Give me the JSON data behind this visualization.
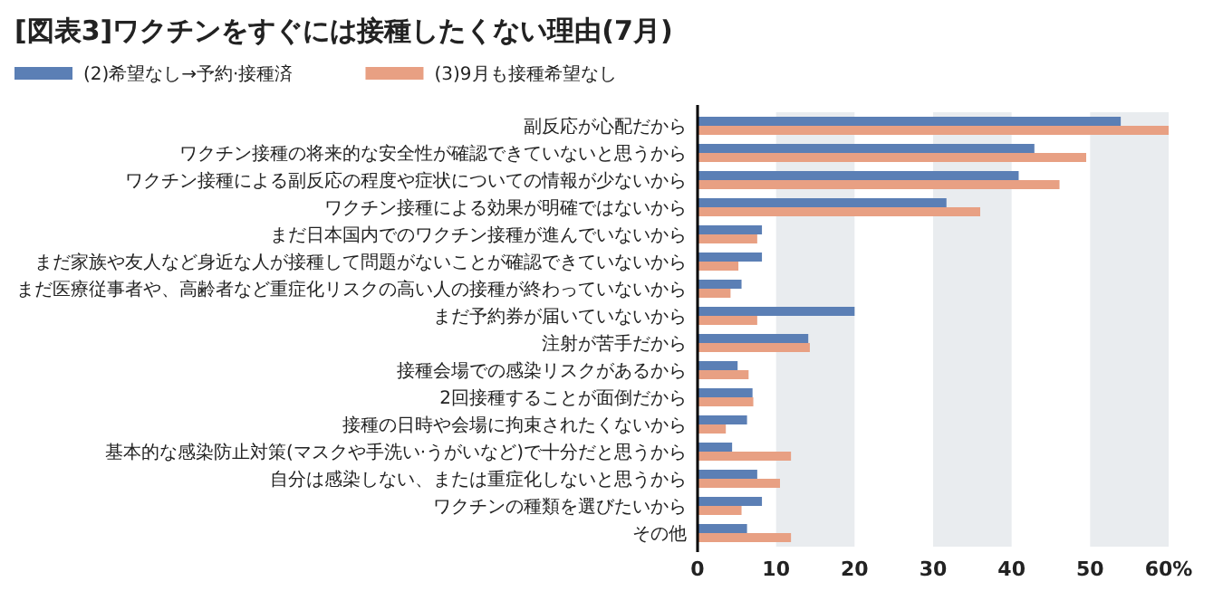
{
  "chart_data": {
    "type": "bar",
    "orientation": "horizontal",
    "title": "[図表3]ワクチンをすぐには接種したくない理由(7月)",
    "categories": [
      "副反応が心配だから",
      "ワクチン接種の将来的な安全性が確認できていないと思うから",
      "ワクチン接種による副反応の程度や症状についての情報が少ないから",
      "ワクチン接種による効果が明確ではないから",
      "まだ日本国内でのワクチン接種が進んでいないから",
      "まだ家族や友人など身近な人が接種して問題がないことが確認できていないから",
      "まだ医療従事者や、高齢者など重症化リスクの高い人の接種が終わっていないから",
      "まだ予約券が届いていないから",
      "注射が苦手だから",
      "接種会場での感染リスクがあるから",
      "2回接種することが面倒だから",
      "接種の日時や会場に拘束されたくないから",
      "基本的な感染防止対策(マスクや手洗い·うがいなど)で十分だと思うから",
      "自分は感染しない、または重症化しないと思うから",
      "ワクチンの種類を選びたいから",
      "その他"
    ],
    "series": [
      {
        "name": "(2)希望なし→予約·接種済",
        "color": "#5b7fb5",
        "values": [
          53.9,
          42.9,
          40.9,
          31.7,
          8.2,
          8.2,
          5.6,
          20.0,
          14.1,
          5.1,
          7.0,
          6.3,
          4.4,
          7.6,
          8.2,
          6.3
        ]
      },
      {
        "name": "(3)9月も接種希望なし",
        "color": "#e8a083",
        "values": [
          60.0,
          49.5,
          46.1,
          36.0,
          7.6,
          5.2,
          4.2,
          7.6,
          14.3,
          6.5,
          7.1,
          3.6,
          11.9,
          10.5,
          5.6,
          11.9
        ]
      }
    ],
    "xlim": [
      0,
      60
    ],
    "xticks": [
      0,
      10,
      20,
      30,
      40,
      50,
      {
        "value": 60,
        "label": "60%"
      }
    ],
    "bands": [
      {
        "axis": "x",
        "from": 10,
        "to": 20,
        "color": "#e9ecef"
      },
      {
        "axis": "x",
        "from": 30,
        "to": 40,
        "color": "#e9ecef"
      },
      {
        "axis": "x",
        "from": 50,
        "to": 60,
        "color": "#e9ecef"
      }
    ],
    "legend": "top left",
    "grid": false
  }
}
